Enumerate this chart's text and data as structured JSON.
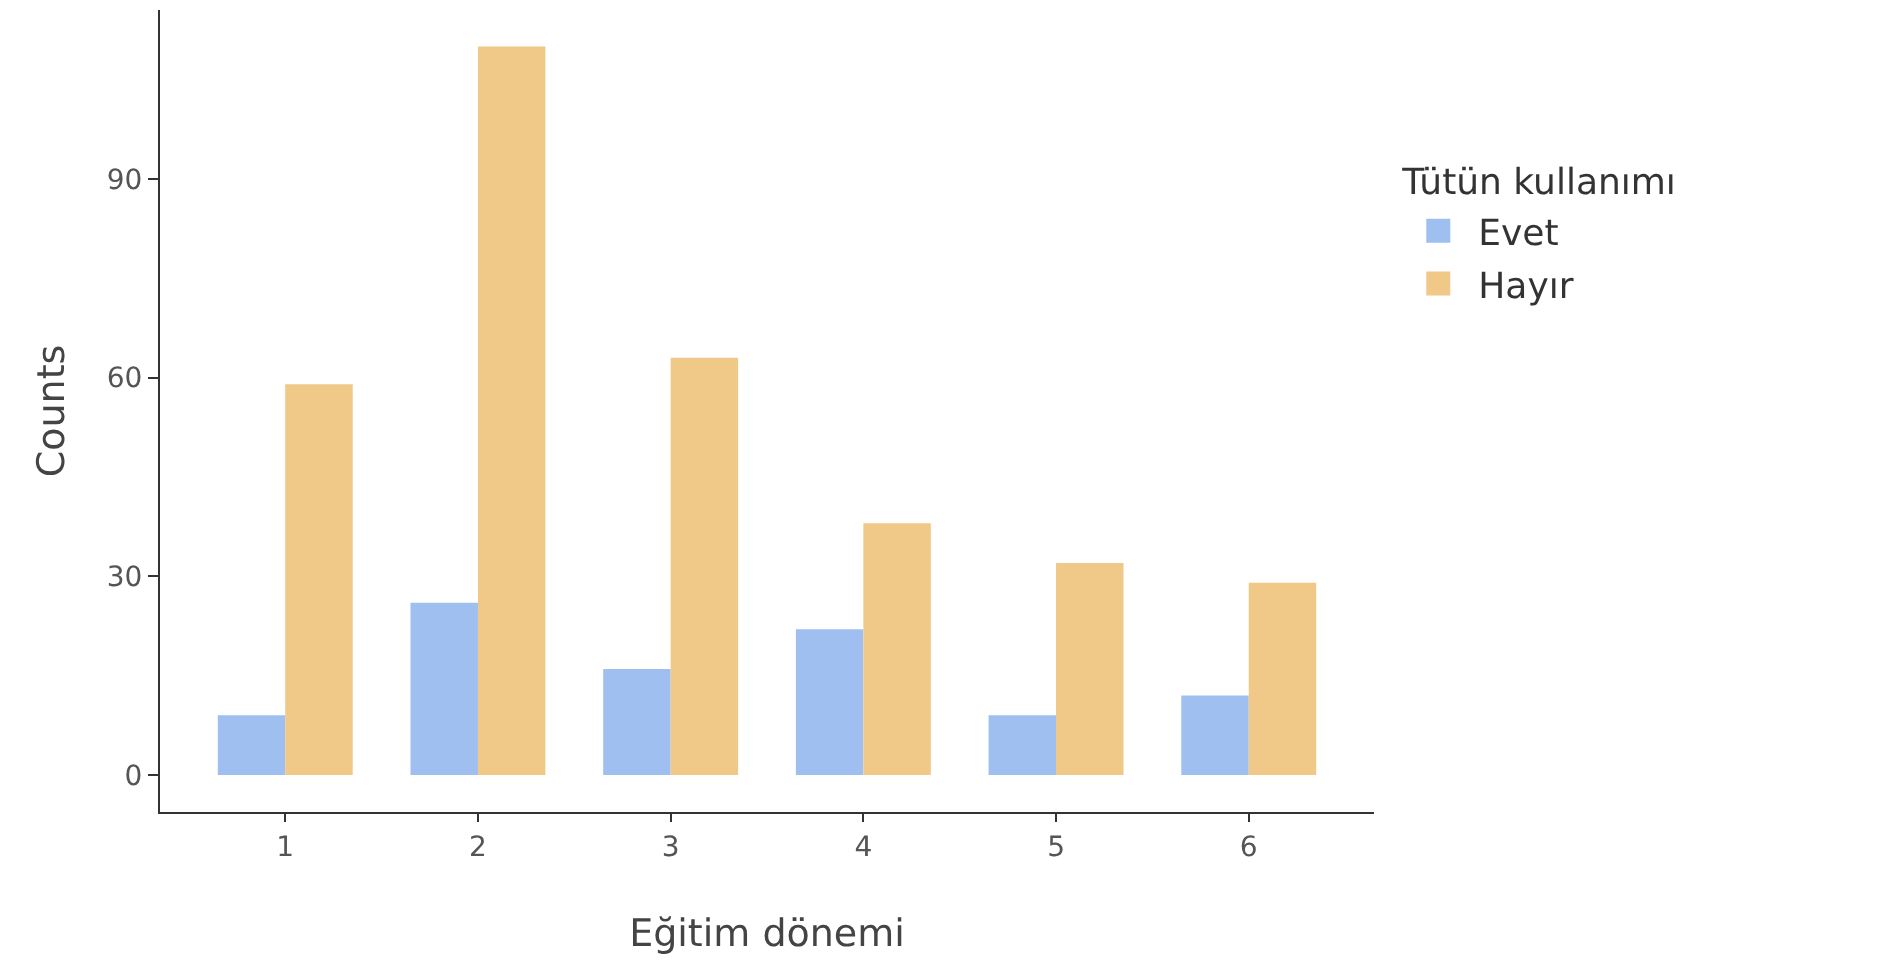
{
  "chart_data": {
    "type": "bar",
    "xlabel": "Eğitim dönemi",
    "ylabel": "Counts",
    "legend_title": "Tütün kullanımı",
    "categories": [
      "1",
      "2",
      "3",
      "4",
      "5",
      "6"
    ],
    "series": [
      {
        "name": "Evet",
        "color": "#9fbff0",
        "values": [
          9,
          26,
          16,
          22,
          9,
          12
        ]
      },
      {
        "name": "Hayır",
        "color": "#f0c887",
        "values": [
          59,
          110,
          63,
          38,
          32,
          29
        ]
      }
    ],
    "ylim": [
      -5.6,
      115.5
    ],
    "yticks": [
      0,
      30,
      60,
      90
    ],
    "grid": false,
    "legend": "right"
  }
}
